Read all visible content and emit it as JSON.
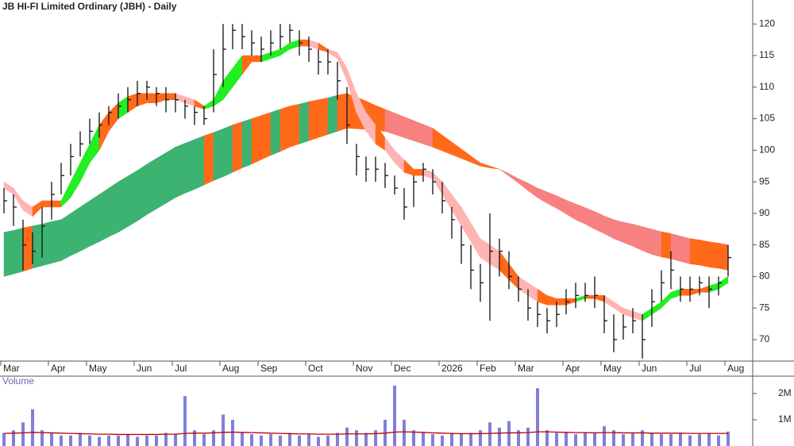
{
  "chart_data": [
    {
      "type": "candlestick",
      "title": "JB HI-FI Limited Ordinary (JBH) - Daily",
      "categories": [
        "Mar",
        null,
        null,
        null,
        null,
        "Apr",
        null,
        null,
        null,
        "May",
        null,
        null,
        null,
        null,
        "Jun",
        null,
        null,
        null,
        "Jul",
        null,
        null,
        null,
        null,
        "Aug",
        null,
        null,
        null,
        "Sep",
        null,
        null,
        null,
        null,
        "Oct",
        null,
        null,
        null,
        null,
        "Nov",
        null,
        null,
        null,
        "Dec",
        null,
        null,
        null,
        null,
        "2026",
        null,
        null,
        null,
        "Feb",
        null,
        null,
        null,
        "Mar",
        null,
        null,
        null,
        null,
        "Apr",
        null,
        null,
        null,
        "May",
        null,
        null,
        null,
        "Jun",
        null,
        null,
        null,
        null,
        "Jul",
        null,
        null,
        null,
        "Aug"
      ],
      "high": [
        94,
        93,
        89,
        87,
        91,
        95,
        98,
        101,
        103,
        105,
        106,
        107,
        109,
        110,
        111,
        111,
        110,
        110,
        109,
        108,
        107,
        107,
        116,
        120,
        120,
        120,
        119,
        118,
        119,
        120,
        120,
        119,
        118,
        116,
        116,
        114,
        110,
        101,
        99,
        99,
        98,
        96,
        94,
        96,
        98,
        97,
        95,
        91,
        88,
        85,
        82,
        90,
        86,
        84,
        80,
        78,
        76,
        75,
        76,
        78,
        79,
        79,
        80,
        77,
        74,
        74,
        75,
        74,
        78,
        81,
        84,
        80,
        80,
        80,
        80,
        80,
        85
      ],
      "low": [
        90,
        88,
        81,
        82,
        83,
        89,
        93,
        96,
        99,
        101,
        102,
        104,
        105,
        106,
        107,
        108,
        107,
        106,
        106,
        105,
        104,
        104,
        106,
        110,
        116,
        116,
        115,
        114,
        115,
        116,
        117,
        115,
        114,
        112,
        112,
        108,
        101,
        96,
        95,
        95,
        94,
        93,
        89,
        91,
        95,
        93,
        90,
        86,
        82,
        78,
        76,
        73,
        80,
        78,
        76,
        73,
        72,
        71,
        72,
        74,
        75,
        76,
        75,
        71,
        68,
        70,
        71,
        67,
        72,
        76,
        78,
        76,
        76,
        77,
        75,
        77,
        80
      ],
      "close": [
        92,
        91,
        85,
        84,
        88,
        93,
        96,
        99,
        101,
        103,
        104,
        106,
        107,
        108,
        109,
        110,
        109,
        108,
        108,
        107,
        106,
        105,
        112,
        116,
        119,
        118,
        117,
        116,
        117,
        118,
        119,
        117,
        116,
        114,
        114,
        111,
        104,
        99,
        97,
        97,
        96,
        94,
        91,
        95,
        97,
        95,
        92,
        89,
        85,
        81,
        79,
        84,
        84,
        80,
        78,
        75,
        74,
        73,
        74,
        76,
        77,
        77,
        77,
        73,
        70,
        72,
        73,
        70,
        76,
        79,
        81,
        78,
        78,
        79,
        78,
        79,
        83
      ],
      "color": "#111111",
      "bands": [
        {
          "upper": [
            87,
            87.3,
            87.7,
            88,
            88.3,
            88.7,
            89,
            90,
            91,
            92,
            93,
            94,
            95,
            95.9,
            96.8,
            97.8,
            98.7,
            99.6,
            100.5,
            101.1,
            101.7,
            102.3,
            102.8,
            103.4,
            104,
            104.5,
            105,
            105.5,
            106,
            106.5,
            107,
            107.3,
            107.7,
            108,
            108.3,
            108.7,
            109,
            108.4,
            107.8,
            107.1,
            106.5,
            105.9,
            105.3,
            104.7,
            104.1,
            103.5,
            102.4,
            101.3,
            100.2,
            99.1,
            98,
            97.5,
            97,
            96.3,
            95.5,
            94.8,
            94,
            93.4,
            92.8,
            92.1,
            91.5,
            90.9,
            90.3,
            89.6,
            89,
            88.6,
            88.3,
            87.9,
            87.5,
            87.1,
            86.8,
            86.4,
            86,
            85.8,
            85.5,
            85.3,
            85
          ],
          "lower": [
            80,
            80.4,
            80.8,
            81.3,
            81.7,
            82.1,
            82.5,
            83.3,
            84,
            84.8,
            85.5,
            86.3,
            87,
            87.9,
            88.8,
            89.8,
            90.7,
            91.6,
            92.5,
            93.2,
            93.8,
            94.5,
            95.2,
            95.8,
            96.5,
            97.2,
            97.8,
            98.5,
            99.2,
            99.8,
            100.5,
            101,
            101.5,
            102,
            102.5,
            103,
            103.5,
            103.4,
            103.3,
            103.1,
            103,
            102.5,
            102,
            101.5,
            101,
            100.5,
            99.9,
            99.3,
            98.7,
            98.1,
            97.5,
            97.2,
            97,
            95.9,
            94.8,
            93.6,
            92.5,
            91.6,
            90.8,
            89.9,
            89,
            88.3,
            87.5,
            86.8,
            86,
            85.4,
            84.8,
            84.1,
            83.5,
            83.1,
            82.8,
            82.4,
            82,
            81.8,
            81.5,
            81.3,
            81
          ],
          "colors": {
            "up": "#3cb371",
            "flat": "#ff6a1a",
            "down": "#f78080"
          }
        },
        {
          "upper": [
            95,
            94,
            92,
            91,
            92,
            92,
            92,
            95,
            98,
            101,
            104,
            106,
            107.5,
            108.5,
            109,
            109,
            109,
            109,
            109,
            108.5,
            108,
            107,
            108,
            111,
            113,
            115,
            115,
            115,
            115.5,
            116,
            117,
            117.5,
            117.5,
            117,
            116,
            115.5,
            113,
            109,
            106,
            104,
            102,
            100,
            98.5,
            97,
            97,
            96.5,
            95,
            93,
            91,
            88.5,
            86,
            85,
            84,
            82,
            80,
            79,
            78,
            77,
            76.5,
            76.5,
            76.5,
            77,
            77,
            77,
            76,
            75,
            74.5,
            74,
            75,
            76,
            77.5,
            78,
            78,
            78,
            78.5,
            79,
            80
          ],
          "lower": [
            94,
            93,
            90.5,
            89.5,
            91,
            91,
            91,
            92.5,
            95,
            98,
            100,
            103,
            105,
            106,
            107,
            107.5,
            107.5,
            108,
            108,
            107.5,
            107,
            106.5,
            107,
            108,
            110,
            112,
            114,
            114,
            114.5,
            115,
            116,
            116.5,
            116.5,
            116,
            115.5,
            114.5,
            111,
            106,
            103,
            101,
            100,
            98,
            96.5,
            96,
            96,
            95.5,
            93,
            90.5,
            88,
            85.5,
            83,
            82,
            81,
            79.5,
            78,
            77,
            76,
            75.5,
            75.5,
            75.5,
            76,
            76.5,
            76.5,
            76,
            75,
            74,
            73.5,
            73,
            74,
            75,
            76.5,
            77,
            77,
            77.5,
            77.5,
            78,
            79
          ],
          "colors": {
            "up": "#22ee22",
            "flat": "#ff6a1a",
            "down": "#ffb4b4"
          }
        }
      ],
      "ylim": [
        66.6,
        123.8
      ],
      "yticks": [
        70,
        75,
        80,
        85,
        90,
        95,
        100,
        105,
        110,
        115,
        120
      ]
    },
    {
      "type": "bar",
      "title": "Volume",
      "values": [
        500000,
        600000,
        900000,
        1400000,
        600000,
        500000,
        400000,
        400000,
        500000,
        400000,
        350000,
        400000,
        400000,
        450000,
        350000,
        400000,
        400000,
        500000,
        450000,
        1900000,
        600000,
        450000,
        600000,
        1200000,
        1000000,
        500000,
        450000,
        400000,
        450000,
        400000,
        500000,
        400000,
        450000,
        350000,
        400000,
        500000,
        700000,
        600000,
        500000,
        600000,
        1000000,
        2300000,
        1000000,
        600000,
        500000,
        450000,
        400000,
        500000,
        450000,
        500000,
        600000,
        900000,
        700000,
        950000,
        600000,
        700000,
        2200000,
        600000,
        500000,
        500000,
        450000,
        500000,
        500000,
        750000,
        600000,
        450000,
        500000,
        600000,
        500000,
        450000,
        450000,
        500000,
        400000,
        450000,
        500000,
        400000,
        550000
      ],
      "color": "#8080d8",
      "average": [
        480000,
        490000,
        500000,
        520000,
        510000,
        500000,
        490000,
        480000,
        470000,
        460000,
        450000,
        450000,
        440000,
        440000,
        440000,
        440000,
        440000,
        450000,
        450000,
        480000,
        490000,
        490000,
        500000,
        520000,
        530000,
        520000,
        510000,
        500000,
        490000,
        480000,
        470000,
        460000,
        460000,
        450000,
        450000,
        450000,
        460000,
        460000,
        460000,
        470000,
        490000,
        530000,
        540000,
        530000,
        520000,
        500000,
        490000,
        480000,
        470000,
        470000,
        470000,
        480000,
        490000,
        500000,
        500000,
        510000,
        540000,
        540000,
        530000,
        520000,
        510000,
        510000,
        500000,
        510000,
        510000,
        500000,
        500000,
        500000,
        490000,
        490000,
        490000,
        490000,
        480000,
        480000,
        480000,
        480000,
        480000
      ],
      "average_color": "#c00000",
      "ylim": [
        0,
        2600000
      ],
      "yticks": [
        {
          "value": 1000000,
          "label": "1M"
        },
        {
          "value": 2000000,
          "label": "2M"
        }
      ]
    }
  ]
}
